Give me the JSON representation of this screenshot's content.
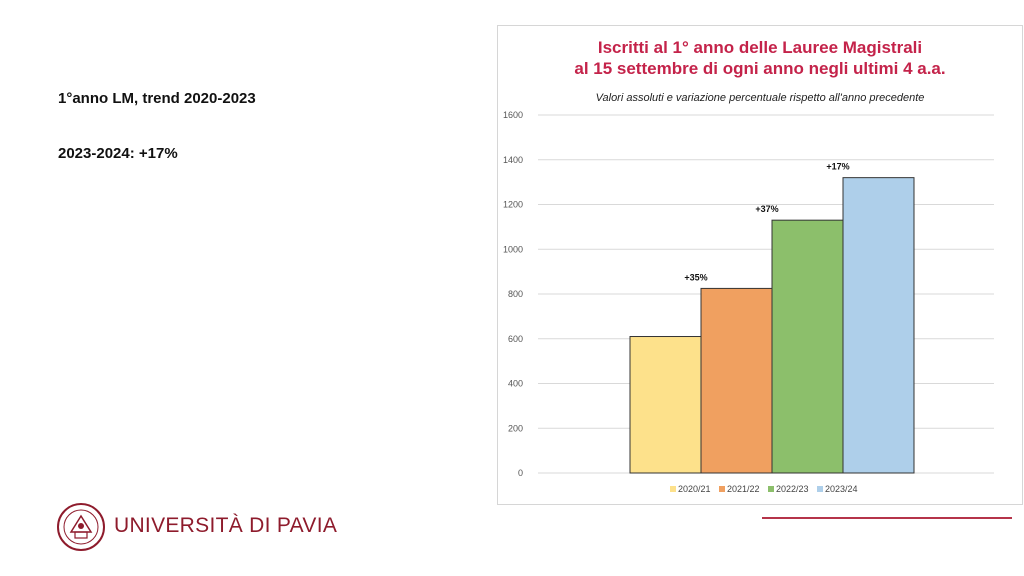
{
  "slide": {
    "heading": "1°anno LM, trend 2020-2023",
    "stat": "2023-2024: +17%"
  },
  "brand": {
    "university_name": "UNIVERSITÀ DI PAVIA",
    "accent_color": "#b5344a"
  },
  "chart_data": {
    "type": "bar",
    "title_line1": "Iscritti al 1° anno delle Lauree Magistrali",
    "title_line2": "al 15 settembre di ogni anno negli ultimi 4 a.a.",
    "subtitle": "Valori assoluti e variazione percentuale rispetto all'anno precedente",
    "categories": [
      "2020/21",
      "2021/22",
      "2022/23",
      "2023/24"
    ],
    "values": [
      610,
      825,
      1130,
      1320
    ],
    "annotations": [
      "",
      "+35%",
      "+37%",
      "+17%"
    ],
    "colors": [
      "#fde18b",
      "#f0a060",
      "#8cbf6b",
      "#aecfea"
    ],
    "ylim": [
      0,
      1600
    ],
    "yticks": [
      0,
      200,
      400,
      600,
      800,
      1000,
      1200,
      1400,
      1600
    ],
    "grid": true,
    "legend": "bottom"
  }
}
